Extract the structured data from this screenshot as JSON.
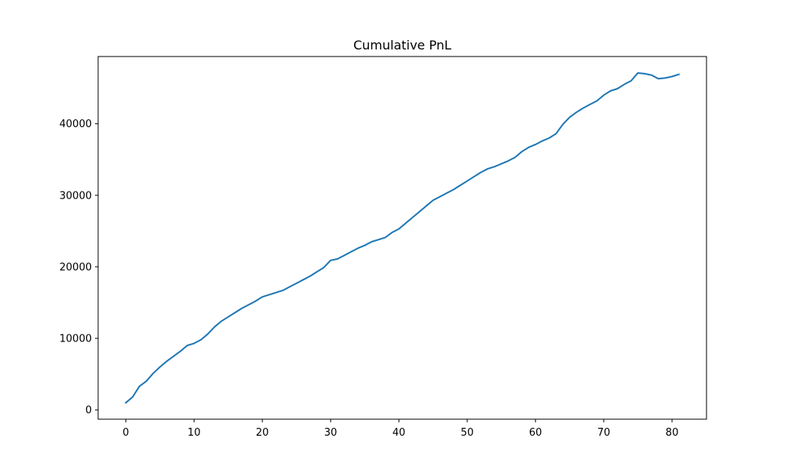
{
  "chart_data": {
    "type": "line",
    "title": "Cumulative PnL",
    "xlabel": "",
    "ylabel": "",
    "xlim": [
      -4.05,
      85.05
    ],
    "ylim": [
      -1300,
      49400
    ],
    "xticks": [
      0,
      10,
      20,
      30,
      40,
      50,
      60,
      70,
      80
    ],
    "yticks": [
      0,
      10000,
      20000,
      30000,
      40000
    ],
    "grid": false,
    "series": [
      {
        "color": "#1f77b4",
        "x": [
          0,
          1,
          2,
          3,
          4,
          5,
          6,
          7,
          8,
          9,
          10,
          11,
          12,
          13,
          14,
          15,
          16,
          17,
          18,
          19,
          20,
          21,
          22,
          23,
          24,
          25,
          26,
          27,
          28,
          29,
          30,
          31,
          32,
          33,
          34,
          35,
          36,
          37,
          38,
          39,
          40,
          41,
          42,
          43,
          44,
          45,
          46,
          47,
          48,
          49,
          50,
          51,
          52,
          53,
          54,
          55,
          56,
          57,
          58,
          59,
          60,
          61,
          62,
          63,
          64,
          65,
          66,
          67,
          68,
          69,
          70,
          71,
          72,
          73,
          74,
          75,
          76,
          77,
          78,
          79,
          80,
          81
        ],
        "y": [
          1000,
          1800,
          3300,
          4000,
          5100,
          6000,
          6800,
          7500,
          8200,
          9000,
          9300,
          9800,
          10600,
          11600,
          12400,
          13000,
          13600,
          14200,
          14700,
          15200,
          15800,
          16100,
          16400,
          16700,
          17200,
          17700,
          18200,
          18700,
          19300,
          19900,
          20900,
          21100,
          21600,
          22100,
          22600,
          23000,
          23500,
          23800,
          24100,
          24800,
          25300,
          26100,
          26900,
          27700,
          28500,
          29300,
          29800,
          30300,
          30800,
          31400,
          32000,
          32600,
          33200,
          33700,
          34000,
          34400,
          34800,
          35300,
          36100,
          36700,
          37100,
          37600,
          38000,
          38600,
          39900,
          40900,
          41600,
          42200,
          42700,
          43200,
          44000,
          44600,
          44900,
          45500,
          46000,
          47100,
          47000,
          46800,
          46300,
          46400,
          46600,
          46900
        ]
      }
    ]
  }
}
